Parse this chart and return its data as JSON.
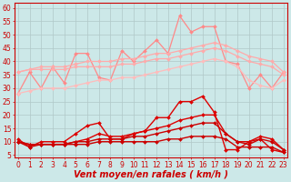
{
  "x": [
    0,
    1,
    2,
    3,
    4,
    5,
    6,
    7,
    8,
    9,
    10,
    11,
    12,
    13,
    14,
    15,
    16,
    17,
    18,
    19,
    20,
    21,
    22,
    23
  ],
  "series": [
    {
      "name": "pink_volatile",
      "color": "#ff8888",
      "marker": "D",
      "markersize": 2.0,
      "linewidth": 0.9,
      "y": [
        28,
        36,
        30,
        38,
        32,
        43,
        43,
        34,
        33,
        44,
        40,
        44,
        48,
        43,
        57,
        51,
        53,
        53,
        40,
        39,
        30,
        35,
        30,
        36
      ]
    },
    {
      "name": "pink_upper",
      "color": "#ffaaaa",
      "marker": "D",
      "markersize": 2.0,
      "linewidth": 0.9,
      "y": [
        36,
        37,
        38,
        38,
        38,
        39,
        40,
        40,
        40,
        41,
        41,
        42,
        43,
        43,
        44,
        45,
        46,
        47,
        46,
        44,
        42,
        41,
        40,
        36
      ]
    },
    {
      "name": "pink_mid_upper",
      "color": "#ffaaaa",
      "marker": "D",
      "markersize": 2.0,
      "linewidth": 0.9,
      "y": [
        36,
        37,
        37,
        37,
        37,
        38,
        38,
        38,
        38,
        39,
        39,
        40,
        41,
        41,
        42,
        43,
        44,
        45,
        44,
        42,
        40,
        39,
        38,
        35
      ]
    },
    {
      "name": "pink_mid",
      "color": "#ffbbbb",
      "marker": "D",
      "markersize": 2.0,
      "linewidth": 0.9,
      "y": [
        28,
        29,
        30,
        30,
        30,
        31,
        32,
        33,
        33,
        34,
        34,
        35,
        36,
        37,
        38,
        39,
        40,
        41,
        40,
        38,
        33,
        31,
        30,
        33
      ]
    },
    {
      "name": "red_max",
      "color": "#dd0000",
      "marker": "D",
      "markersize": 2.0,
      "linewidth": 1.0,
      "y": [
        11,
        8,
        10,
        10,
        10,
        13,
        16,
        17,
        11,
        11,
        13,
        14,
        19,
        19,
        25,
        25,
        27,
        21,
        7,
        7,
        10,
        11,
        7,
        6
      ]
    },
    {
      "name": "red_upper_mid",
      "color": "#dd0000",
      "marker": "D",
      "markersize": 2.0,
      "linewidth": 1.0,
      "y": [
        10,
        9,
        9,
        9,
        9,
        10,
        11,
        13,
        12,
        12,
        13,
        14,
        15,
        16,
        18,
        19,
        20,
        20,
        13,
        10,
        10,
        12,
        11,
        7
      ]
    },
    {
      "name": "red_lower_mid",
      "color": "#cc0000",
      "marker": "D",
      "markersize": 2.0,
      "linewidth": 1.0,
      "y": [
        10,
        9,
        9,
        9,
        9,
        10,
        10,
        11,
        11,
        11,
        12,
        12,
        13,
        14,
        15,
        16,
        17,
        17,
        13,
        10,
        9,
        11,
        10,
        7
      ]
    },
    {
      "name": "red_min",
      "color": "#cc0000",
      "marker": "D",
      "markersize": 2.0,
      "linewidth": 1.0,
      "y": [
        10,
        8,
        9,
        9,
        9,
        9,
        9,
        10,
        10,
        10,
        10,
        10,
        10,
        11,
        11,
        12,
        12,
        12,
        11,
        8,
        8,
        8,
        8,
        6
      ]
    }
  ],
  "xlabel": "Vent moyen/en rafales ( km/h )",
  "yticks": [
    5,
    10,
    15,
    20,
    25,
    30,
    35,
    40,
    45,
    50,
    55,
    60
  ],
  "xticks": [
    0,
    1,
    2,
    3,
    4,
    5,
    6,
    7,
    8,
    9,
    10,
    11,
    12,
    13,
    14,
    15,
    16,
    17,
    18,
    19,
    20,
    21,
    22,
    23
  ],
  "ylim": [
    4,
    62
  ],
  "xlim": [
    -0.3,
    23.3
  ],
  "bg_color": "#cce8e8",
  "grid_color": "#b0c8c8",
  "xlabel_color": "#cc0000",
  "xlabel_fontsize": 7,
  "tick_fontsize": 5.5,
  "tick_color": "#cc0000",
  "spine_color": "#cc0000"
}
